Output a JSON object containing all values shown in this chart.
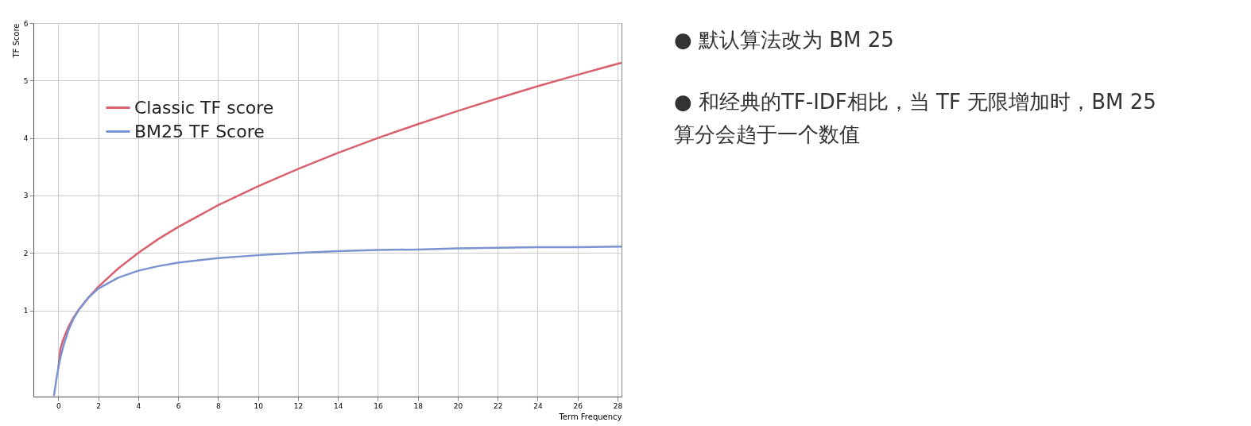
{
  "chart_data": {
    "type": "line",
    "xlabel": "Term Frequency",
    "ylabel": "TF Score",
    "xlim": [
      -1.25,
      28.2
    ],
    "ylim": [
      -0.5,
      6
    ],
    "xticks": [
      0,
      2,
      4,
      6,
      8,
      10,
      12,
      14,
      16,
      18,
      20,
      22,
      24,
      26,
      28
    ],
    "yticks": [
      1,
      2,
      3,
      4,
      5,
      6
    ],
    "grid": true,
    "legend": "top left",
    "line_style": "solid",
    "marker": "none",
    "series": [
      {
        "name": "Classic TF score",
        "color": "#d9606e",
        "x": [
          0,
          0.1,
          0.25,
          0.5,
          0.75,
          1,
          1.5,
          2,
          3,
          4,
          5,
          6,
          8,
          10,
          12,
          14,
          16,
          18,
          20,
          22,
          24,
          26,
          28.2
        ],
        "values": [
          0,
          0.32,
          0.5,
          0.71,
          0.87,
          1,
          1.22,
          1.41,
          1.73,
          2,
          2.24,
          2.45,
          2.83,
          3.16,
          3.46,
          3.74,
          4,
          4.24,
          4.47,
          4.69,
          4.9,
          5.1,
          5.31
        ]
      },
      {
        "name": "BM25 TF Score",
        "color": "#7b93d1",
        "x": [
          -0.22,
          -0.1,
          0,
          0.1,
          0.25,
          0.5,
          0.75,
          1,
          1.5,
          2,
          3,
          4,
          5,
          6,
          8,
          10,
          12,
          14,
          16,
          18,
          20,
          22,
          24,
          26,
          28.2
        ],
        "values": [
          -0.49,
          -0.2,
          0,
          0.17,
          0.38,
          0.65,
          0.85,
          1,
          1.22,
          1.38,
          1.57,
          1.69,
          1.77,
          1.83,
          1.91,
          1.96,
          2,
          2.03,
          2.05,
          2.06,
          2.08,
          2.09,
          2.1,
          2.1,
          2.11
        ]
      }
    ],
    "annotations": [
      "● 默认算法改为 BM 25",
      "● 和经典的TF-IDF相比，当 TF 无限增加时，BM 25算分会趋于一个数值"
    ]
  }
}
